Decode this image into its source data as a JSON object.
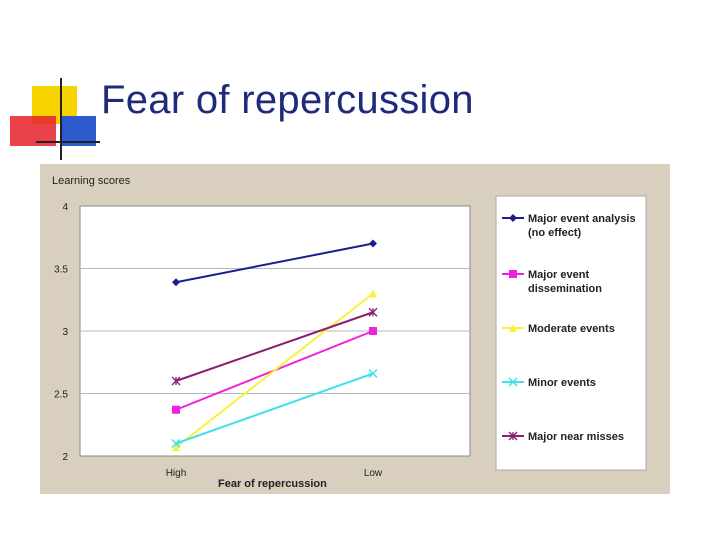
{
  "slide": {
    "title": "Fear of repercussion",
    "colors": {
      "title": "#1f2a7a",
      "panel": "#d8cfbf",
      "deco_yellow": "#f7d400",
      "deco_blue": "#2a5acc",
      "deco_red": "#e8202a"
    }
  },
  "chart_data": {
    "type": "line",
    "title": "Learning scores",
    "xlabel": "Fear of repercussion",
    "ylabel": "",
    "categories": [
      "High",
      "Low"
    ],
    "ylim": [
      2,
      4
    ],
    "yticks": [
      "2",
      "2.5",
      "3",
      "3.5",
      "4"
    ],
    "grid": true,
    "legend_position": "right",
    "series": [
      {
        "name": "Major event analysis (no effect)",
        "name_lines": [
          "Major event analysis",
          "(no effect)"
        ],
        "values": [
          3.39,
          3.7
        ],
        "color": "#1a1f8c",
        "marker": "diamond"
      },
      {
        "name": "Major event dissemination",
        "name_lines": [
          "Major event",
          "dissemination"
        ],
        "values": [
          2.37,
          3.0
        ],
        "color": "#ee22dd",
        "marker": "square"
      },
      {
        "name": "Moderate events",
        "name_lines": [
          "Moderate events"
        ],
        "values": [
          2.07,
          3.3
        ],
        "color": "#f8f23a",
        "marker": "triangle"
      },
      {
        "name": "Minor events",
        "name_lines": [
          "Minor events"
        ],
        "values": [
          2.1,
          2.66
        ],
        "color": "#3fe0e8",
        "marker": "x"
      },
      {
        "name": "Major near misses",
        "name_lines": [
          "Major near misses"
        ],
        "values": [
          2.6,
          3.15
        ],
        "color": "#8a1f72",
        "marker": "star"
      }
    ]
  }
}
